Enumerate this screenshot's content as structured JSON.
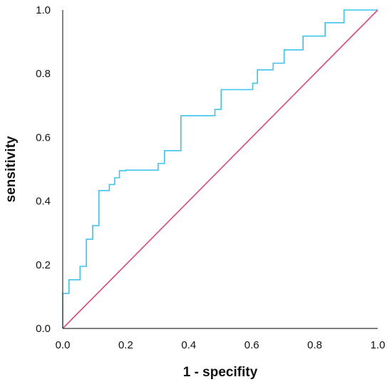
{
  "chart_data": {
    "type": "line",
    "title": "",
    "xlabel": "1 - specifity",
    "ylabel": "sensitivity",
    "xlim": [
      0,
      1
    ],
    "ylim": [
      0,
      1
    ],
    "xticks": [
      "0.0",
      "0.2",
      "0.4",
      "0.6",
      "0.8",
      "1.0"
    ],
    "yticks": [
      "0.0",
      "0.2",
      "0.4",
      "0.6",
      "0.8",
      "1.0"
    ],
    "grid": false,
    "legend": "none",
    "series": [
      {
        "color": "#3ec3ef",
        "x": [
          0,
          0,
          0.02,
          0.02,
          0.055,
          0.055,
          0.075,
          0.075,
          0.095,
          0.095,
          0.115,
          0.115,
          0.148,
          0.148,
          0.165,
          0.165,
          0.18,
          0.18,
          0.2,
          0.2,
          0.303,
          0.303,
          0.323,
          0.323,
          0.375,
          0.375,
          0.483,
          0.483,
          0.503,
          0.503,
          0.603,
          0.603,
          0.618,
          0.618,
          0.668,
          0.668,
          0.703,
          0.703,
          0.763,
          0.763,
          0.833,
          0.833,
          0.893,
          0.893,
          1.0
        ],
        "y": [
          0,
          0.11,
          0.11,
          0.153,
          0.153,
          0.195,
          0.195,
          0.28,
          0.28,
          0.323,
          0.323,
          0.433,
          0.433,
          0.452,
          0.452,
          0.473,
          0.473,
          0.495,
          0.495,
          0.497,
          0.497,
          0.518,
          0.518,
          0.558,
          0.558,
          0.668,
          0.668,
          0.688,
          0.688,
          0.75,
          0.75,
          0.77,
          0.77,
          0.812,
          0.812,
          0.833,
          0.833,
          0.875,
          0.875,
          0.918,
          0.918,
          0.96,
          0.96,
          1.0,
          1.0
        ]
      },
      {
        "color": "#e0457b",
        "x": [
          0,
          1
        ],
        "y": [
          0,
          1
        ]
      }
    ]
  }
}
